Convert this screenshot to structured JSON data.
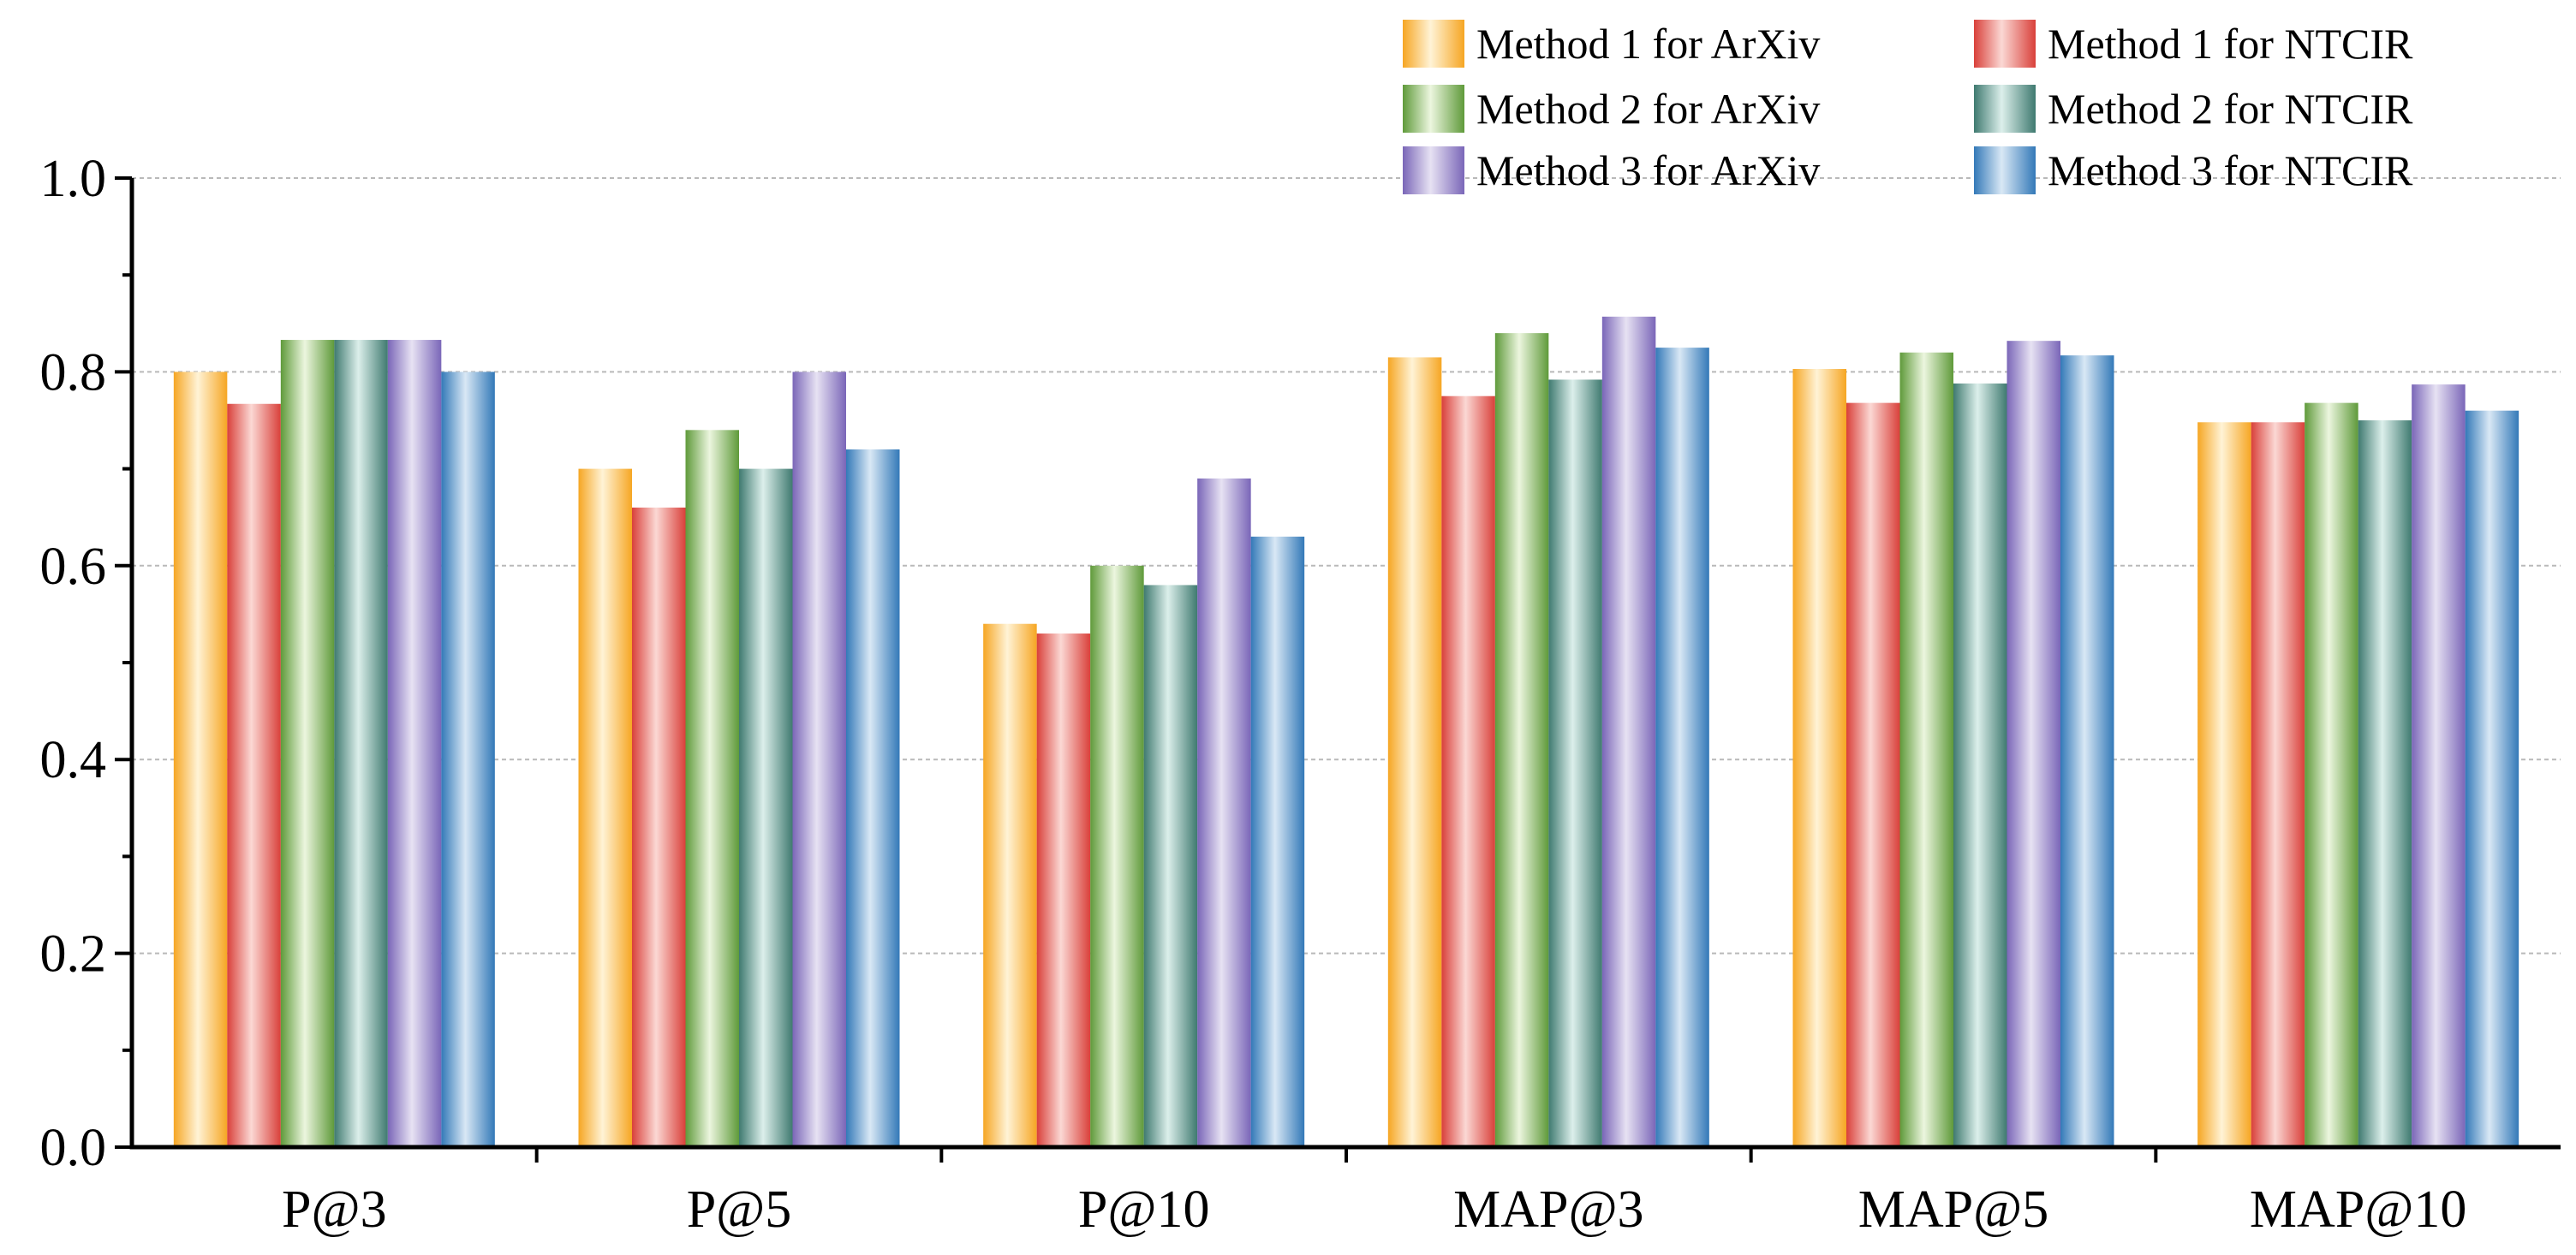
{
  "chart_data": {
    "type": "bar",
    "title": "",
    "xlabel": "",
    "ylabel": "",
    "ylim": [
      0,
      1.0
    ],
    "y_ticks": [
      "0.0",
      "0.2",
      "0.4",
      "0.6",
      "0.8",
      "1.0"
    ],
    "grid": "horizontal dashed at 0.2 intervals",
    "legend_position": "top-right",
    "categories": [
      "P@3",
      "P@5",
      "P@10",
      "MAP@3",
      "MAP@5",
      "MAP@10"
    ],
    "series": [
      {
        "name": "Method 1 for ArXiv",
        "values": [
          0.8,
          0.7,
          0.54,
          0.815,
          0.803,
          0.748
        ],
        "colors": {
          "edge": "#f6a623",
          "light": "#fff3d6"
        }
      },
      {
        "name": "Method 1 for NTCIR",
        "values": [
          0.767,
          0.66,
          0.53,
          0.775,
          0.768,
          0.748
        ],
        "colors": {
          "edge": "#d9403a",
          "light": "#fbd8d4"
        }
      },
      {
        "name": "Method 2 for ArXiv",
        "values": [
          0.833,
          0.74,
          0.6,
          0.84,
          0.82,
          0.768
        ],
        "colors": {
          "edge": "#5f9a3a",
          "light": "#ecf6df"
        }
      },
      {
        "name": "Method 2 for NTCIR",
        "values": [
          0.833,
          0.7,
          0.58,
          0.792,
          0.788,
          0.75
        ],
        "colors": {
          "edge": "#3f7a70",
          "light": "#dcefeb"
        }
      },
      {
        "name": "Method 3 for ArXiv",
        "values": [
          0.833,
          0.8,
          0.69,
          0.857,
          0.832,
          0.787
        ],
        "colors": {
          "edge": "#7a66b8",
          "light": "#e7e2f3"
        }
      },
      {
        "name": "Method 3 for NTCIR",
        "values": [
          0.8,
          0.72,
          0.63,
          0.825,
          0.817,
          0.76
        ],
        "colors": {
          "edge": "#3379b8",
          "light": "#d9e8f5"
        }
      }
    ]
  }
}
